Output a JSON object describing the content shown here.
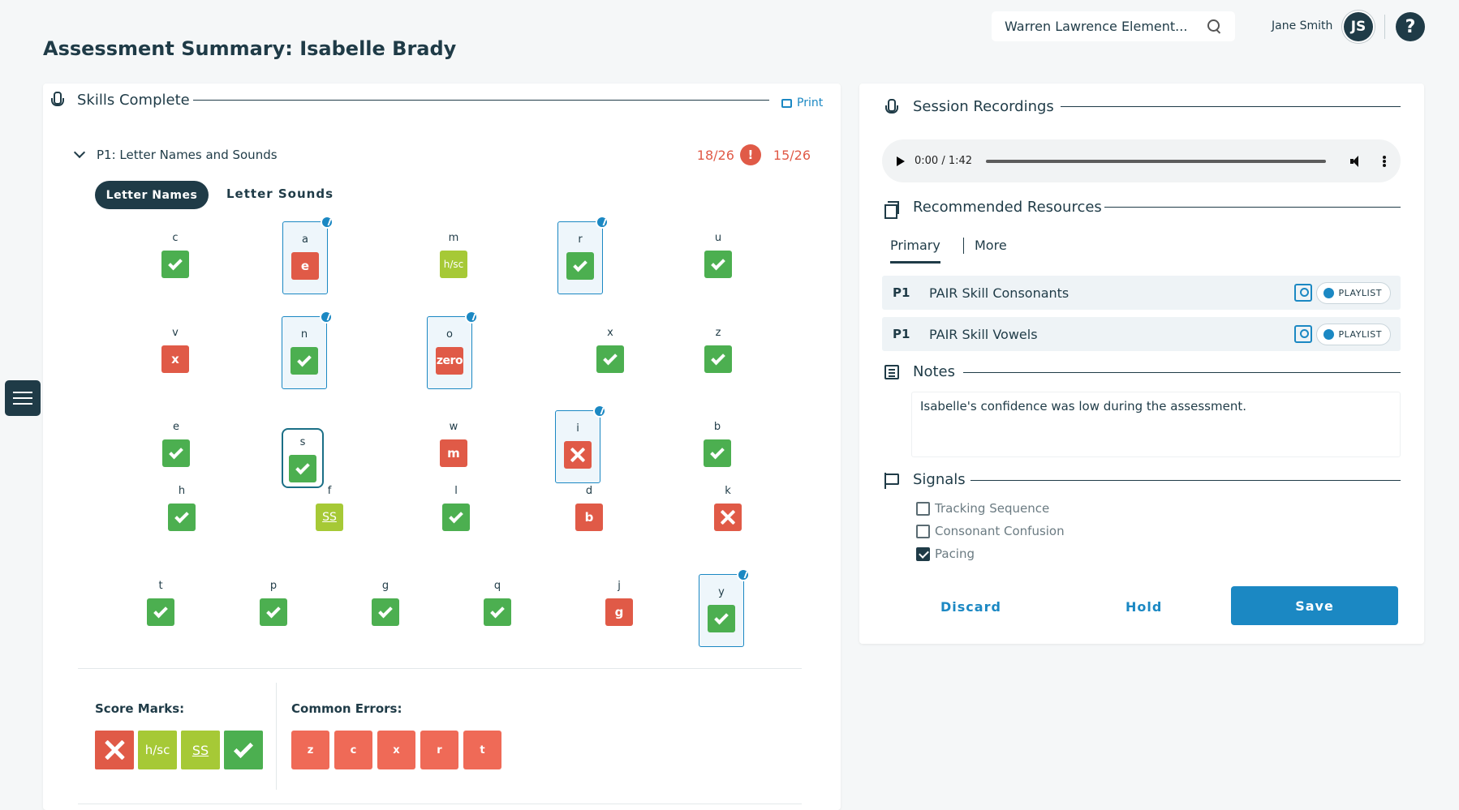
{
  "page": {
    "title": "Assessment Summary: Isabelle Brady"
  },
  "header": {
    "school": "Warren Lawrence Element...",
    "user_name": "Jane Smith",
    "user_initials": "JS",
    "help_label": "?"
  },
  "skills": {
    "title": "Skills Complete",
    "print_label": "Print",
    "section": {
      "title": "P1: Letter Names and Sounds",
      "score_a": "18/26",
      "alert": "!",
      "score_b": "15/26"
    },
    "tabs": {
      "active": "Letter Names",
      "inactive": "Letter Sounds"
    },
    "letters": [
      {
        "l": "c",
        "r": "correct",
        "t": ""
      },
      {
        "l": "a",
        "r": "sub",
        "t": "e"
      },
      {
        "l": "m",
        "r": "hsc",
        "t": "h/sc"
      },
      {
        "l": "r",
        "r": "correct",
        "t": ""
      },
      {
        "l": "u",
        "r": "correct",
        "t": ""
      },
      {
        "l": "v",
        "r": "sub",
        "t": "x"
      },
      {
        "l": "n",
        "r": "correct",
        "t": ""
      },
      {
        "l": "o",
        "r": "sub",
        "t": "zero"
      },
      {
        "l": "x",
        "r": "correct",
        "t": ""
      },
      {
        "l": "z",
        "r": "correct",
        "t": ""
      },
      {
        "l": "e",
        "r": "correct",
        "t": ""
      },
      {
        "l": "s",
        "r": "correct",
        "t": ""
      },
      {
        "l": "w",
        "r": "sub",
        "t": "m"
      },
      {
        "l": "i",
        "r": "wrong",
        "t": ""
      },
      {
        "l": "b",
        "r": "correct",
        "t": ""
      },
      {
        "l": "h",
        "r": "correct",
        "t": ""
      },
      {
        "l": "f",
        "r": "ss",
        "t": "SS"
      },
      {
        "l": "l",
        "r": "correct",
        "t": ""
      },
      {
        "l": "d",
        "r": "sub",
        "t": "b"
      },
      {
        "l": "k",
        "r": "wrong",
        "t": ""
      },
      {
        "l": "t",
        "r": "correct",
        "t": ""
      },
      {
        "l": "p",
        "r": "correct",
        "t": ""
      },
      {
        "l": "g",
        "r": "correct",
        "t": ""
      },
      {
        "l": "q",
        "r": "correct",
        "t": ""
      },
      {
        "l": "j",
        "r": "sub",
        "t": "g"
      },
      {
        "l": "y",
        "r": "correct",
        "t": ""
      }
    ],
    "score_marks_title": "Score Marks:",
    "score_marks": {
      "hsc": "h/sc",
      "ss": "SS"
    },
    "common_errors_title": "Common Errors:",
    "common_errors": [
      "z",
      "c",
      "x",
      "r",
      "t"
    ]
  },
  "recordings": {
    "title": "Session Recordings",
    "time": "0:00 / 1:42"
  },
  "resources": {
    "title": "Recommended Resources",
    "tabs": {
      "primary": "Primary",
      "more": "More"
    },
    "items": [
      {
        "level": "P1",
        "name": "PAIR Skill Consonants",
        "badge": "PLAYLIST"
      },
      {
        "level": "P1",
        "name": "PAIR Skill Vowels",
        "badge": "PLAYLIST"
      }
    ]
  },
  "notes": {
    "title": "Notes",
    "text": "Isabelle's confidence was low during the assessment."
  },
  "signals": {
    "title": "Signals",
    "items": [
      {
        "label": "Tracking Sequence",
        "checked": false
      },
      {
        "label": "Consonant Confusion",
        "checked": false
      },
      {
        "label": "Pacing",
        "checked": true
      }
    ]
  },
  "actions": {
    "discard": "Discard",
    "hold": "Hold",
    "save": "Save"
  },
  "colors": {
    "brand": "#1f3b47",
    "accent": "#1b88c3",
    "correct": "#4caf50",
    "error": "#e05a47",
    "partial": "#a6c936"
  }
}
